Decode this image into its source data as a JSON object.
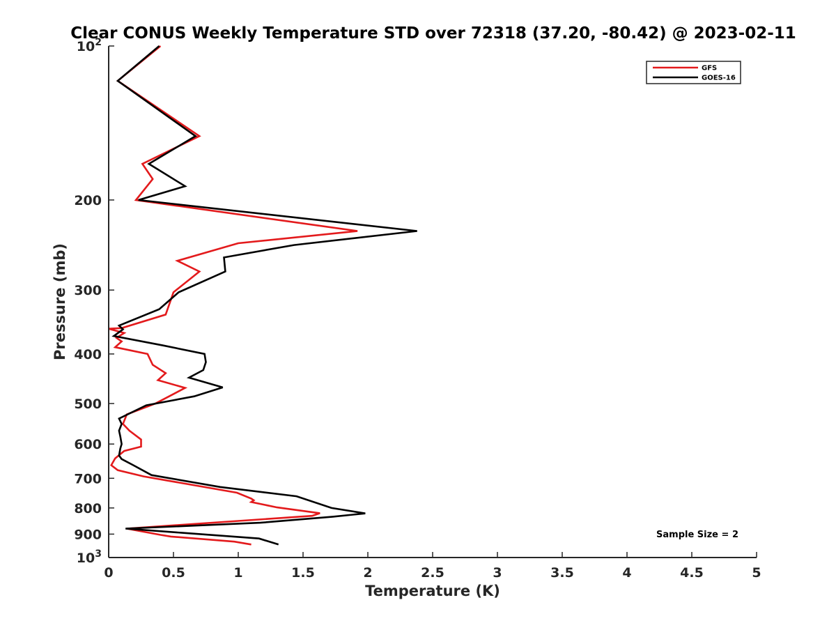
{
  "chart_data": {
    "type": "line",
    "title": "Clear CONUS Weekly Temperature STD over 72318 (37.20, -80.42) @ 2023-02-11",
    "xlabel": "Temperature (K)",
    "ylabel": "Pressure (mb)",
    "xlim": [
      0,
      5
    ],
    "ylim": [
      100,
      1000
    ],
    "yscale": "log",
    "y_reversed": true,
    "x_ticks": [
      {
        "value": 0,
        "label": "0"
      },
      {
        "value": 0.5,
        "label": "0.5"
      },
      {
        "value": 1,
        "label": "1"
      },
      {
        "value": 1.5,
        "label": "1.5"
      },
      {
        "value": 2,
        "label": "2"
      },
      {
        "value": 2.5,
        "label": "2.5"
      },
      {
        "value": 3,
        "label": "3"
      },
      {
        "value": 3.5,
        "label": "3.5"
      },
      {
        "value": 4,
        "label": "4"
      },
      {
        "value": 4.5,
        "label": "4.5"
      },
      {
        "value": 5,
        "label": "5"
      }
    ],
    "y_ticks": [
      {
        "value": 100,
        "label": "10",
        "sup": "2"
      },
      {
        "value": 200,
        "label": "200"
      },
      {
        "value": 300,
        "label": "300"
      },
      {
        "value": 400,
        "label": "400"
      },
      {
        "value": 500,
        "label": "500"
      },
      {
        "value": 600,
        "label": "600"
      },
      {
        "value": 700,
        "label": "700"
      },
      {
        "value": 800,
        "label": "800"
      },
      {
        "value": 900,
        "label": "900"
      },
      {
        "value": 1000,
        "label": "10",
        "sup": "3"
      }
    ],
    "legend_position": "top-right",
    "grid": false,
    "series": [
      {
        "name": "GFS",
        "color": "#e31a1c",
        "points": [
          [
            0.4,
            100
          ],
          [
            0.07,
            117
          ],
          [
            0.7,
            150
          ],
          [
            0.26,
            170
          ],
          [
            0.34,
            182
          ],
          [
            0.21,
            200
          ],
          [
            1.92,
            230
          ],
          [
            1.0,
            243
          ],
          [
            0.53,
            263
          ],
          [
            0.7,
            276
          ],
          [
            0.5,
            303
          ],
          [
            0.44,
            335
          ],
          [
            0.1,
            356
          ],
          [
            0.0,
            357
          ],
          [
            0.12,
            364
          ],
          [
            0.06,
            372
          ],
          [
            0.1,
            378
          ],
          [
            0.05,
            388
          ],
          [
            0.3,
            400
          ],
          [
            0.34,
            420
          ],
          [
            0.44,
            436
          ],
          [
            0.38,
            450
          ],
          [
            0.59,
            466
          ],
          [
            0.46,
            485
          ],
          [
            0.36,
            500
          ],
          [
            0.14,
            525
          ],
          [
            0.11,
            548
          ],
          [
            0.16,
            565
          ],
          [
            0.25,
            588
          ],
          [
            0.25,
            607
          ],
          [
            0.12,
            619
          ],
          [
            0.05,
            640
          ],
          [
            0.02,
            660
          ],
          [
            0.07,
            675
          ],
          [
            0.27,
            694
          ],
          [
            0.99,
            747
          ],
          [
            1.1,
            767
          ],
          [
            1.12,
            773
          ],
          [
            1.1,
            779
          ],
          [
            1.3,
            798
          ],
          [
            1.63,
            819
          ],
          [
            1.57,
            829
          ],
          [
            0.14,
            878
          ],
          [
            0.4,
            903
          ],
          [
            0.48,
            910
          ],
          [
            0.97,
            931
          ],
          [
            1.1,
            943
          ]
        ]
      },
      {
        "name": "GOES-16",
        "color": "#000000",
        "points": [
          [
            0.39,
            100
          ],
          [
            0.07,
            117
          ],
          [
            0.67,
            150
          ],
          [
            0.31,
            170
          ],
          [
            0.59,
            188
          ],
          [
            0.23,
            200
          ],
          [
            2.38,
            230
          ],
          [
            1.43,
            245
          ],
          [
            0.89,
            259
          ],
          [
            0.9,
            276
          ],
          [
            0.54,
            303
          ],
          [
            0.39,
            327
          ],
          [
            0.08,
            352
          ],
          [
            0.11,
            358
          ],
          [
            0.04,
            369
          ],
          [
            0.42,
            385
          ],
          [
            0.74,
            400
          ],
          [
            0.75,
            415
          ],
          [
            0.73,
            430
          ],
          [
            0.62,
            445
          ],
          [
            0.88,
            465
          ],
          [
            0.66,
            484
          ],
          [
            0.29,
            504
          ],
          [
            0.08,
            535
          ],
          [
            0.1,
            548
          ],
          [
            0.08,
            565
          ],
          [
            0.09,
            580
          ],
          [
            0.1,
            600
          ],
          [
            0.09,
            612
          ],
          [
            0.08,
            632
          ],
          [
            0.1,
            642
          ],
          [
            0.19,
            660
          ],
          [
            0.33,
            690
          ],
          [
            0.86,
            728
          ],
          [
            1.45,
            759
          ],
          [
            1.72,
            800
          ],
          [
            1.98,
            820
          ],
          [
            1.73,
            832
          ],
          [
            1.17,
            855
          ],
          [
            0.13,
            878
          ],
          [
            0.57,
            895
          ],
          [
            1.16,
            918
          ],
          [
            1.31,
            943
          ]
        ]
      }
    ],
    "annotations": [
      {
        "text": "Sample Size = 2",
        "position": "bottom-right"
      }
    ]
  }
}
